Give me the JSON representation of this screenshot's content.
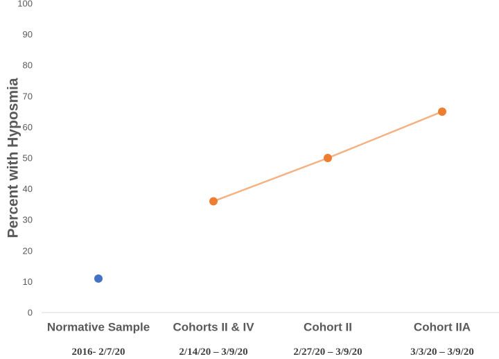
{
  "chart_data": {
    "type": "line",
    "ylabel": "Percent with Hyposmia",
    "ylim": [
      0,
      100
    ],
    "yticks": [
      0,
      10,
      20,
      30,
      40,
      50,
      60,
      70,
      80,
      90,
      100
    ],
    "grid": false,
    "categories": [
      "Normative Sample",
      "Cohorts II & IV",
      "Cohort II",
      "Cohort IIA"
    ],
    "category_dates": [
      "2016- 2/7/20",
      "2/14/20 – 3/9/20",
      "2/27/20 – 3/9/20",
      "3/3/20 – 3/9/20"
    ],
    "series": [
      {
        "values": [
          11,
          null,
          null,
          null
        ],
        "color": "#4472C4",
        "line": false
      },
      {
        "values": [
          null,
          36,
          50,
          65
        ],
        "color": "#ED7D31",
        "line_color": "#F4B183",
        "line": true
      }
    ]
  }
}
